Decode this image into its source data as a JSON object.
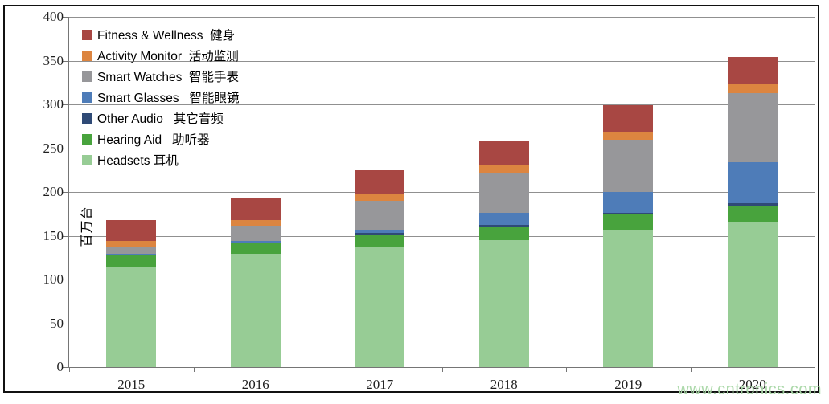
{
  "watermark": "www.cntronics.com",
  "y_axis": {
    "title": "百万台",
    "ticks": [
      0,
      50,
      100,
      150,
      200,
      250,
      300,
      350,
      400
    ]
  },
  "x_axis": {
    "categories": [
      "2015",
      "2016",
      "2017",
      "2018",
      "2019",
      "2020"
    ]
  },
  "chart_data": {
    "type": "bar",
    "stacked": true,
    "title": "",
    "xlabel": "",
    "ylabel": "百万台",
    "ylim": [
      0,
      400
    ],
    "ytick_step": 50,
    "grid": true,
    "legend_position": "inside-top-left",
    "categories": [
      "2015",
      "2016",
      "2017",
      "2018",
      "2019",
      "2020"
    ],
    "series": [
      {
        "name": "Headsets",
        "legend_label": "Headsets 耳机",
        "color": "#97CC95",
        "values": [
          115,
          129,
          138,
          145,
          157,
          166
        ]
      },
      {
        "name": "Hearing Aid",
        "legend_label": "Hearing Aid   助听器",
        "color": "#48A33D",
        "values": [
          13,
          13,
          13.5,
          15,
          17,
          18.5
        ]
      },
      {
        "name": "Other Audio",
        "legend_label": "Other Audio   其它音频",
        "color": "#2F4A76",
        "values": [
          0.5,
          0.5,
          2,
          2.5,
          2.5,
          2.5
        ]
      },
      {
        "name": "Smart Glasses",
        "legend_label": "Smart Glasses   智能眼镜",
        "color": "#4E7CB8",
        "values": [
          1,
          2,
          3.5,
          14,
          23.5,
          47
        ]
      },
      {
        "name": "Smart Watches",
        "legend_label": "Smart Watches  智能手表",
        "color": "#97979A",
        "values": [
          8.5,
          16.5,
          33,
          46,
          60,
          79
        ]
      },
      {
        "name": "Activity Monitor",
        "legend_label": "Activity Monitor  活动监测",
        "color": "#DC8540",
        "values": [
          6.5,
          7,
          8,
          8.5,
          9,
          10
        ]
      },
      {
        "name": "Fitness & Wellness",
        "legend_label": "Fitness & Wellness  健身",
        "color": "#A84743",
        "values": [
          23.5,
          26,
          26.5,
          28,
          30,
          31.5
        ]
      }
    ],
    "totals": [
      168,
      194,
      224.5,
      259,
      299,
      354.5
    ],
    "legend_order_top_to_bottom": [
      "Fitness & Wellness",
      "Activity Monitor",
      "Smart Watches",
      "Smart Glasses",
      "Other Audio",
      "Hearing Aid",
      "Headsets"
    ]
  }
}
